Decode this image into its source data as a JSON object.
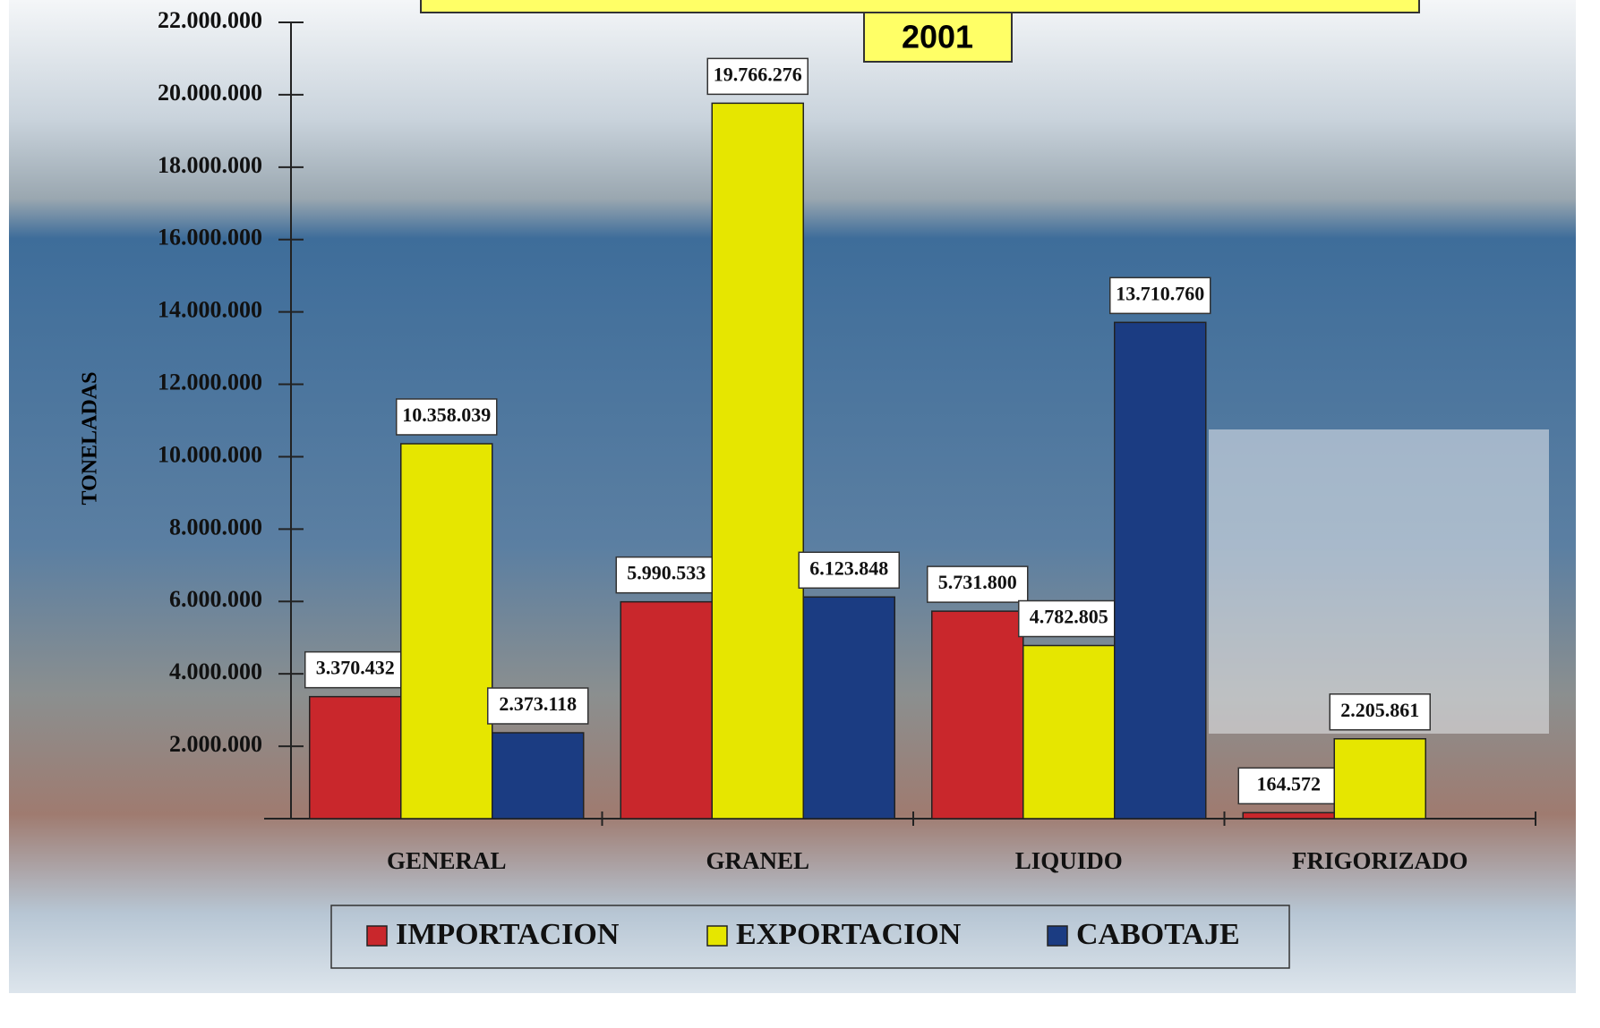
{
  "chart_data": {
    "type": "bar",
    "title": "2001",
    "y_label": "TONELADAS",
    "categories": [
      "GENERAL",
      "GRANEL",
      "LIQUIDO",
      "FRIGORIZADO"
    ],
    "series": [
      {
        "name": "IMPORTACION",
        "color": "#c9272c",
        "values": [
          3370432,
          5990533,
          5731800,
          164572
        ],
        "value_labels": [
          "3.370.432",
          "5.990.533",
          "5.731.800",
          "164.572"
        ]
      },
      {
        "name": "EXPORTACION",
        "color": "#e6e600",
        "values": [
          10358039,
          19766276,
          4782805,
          2205861
        ],
        "value_labels": [
          "10.358.039",
          "19.766.276",
          "4.782.805",
          "2.205.861"
        ]
      },
      {
        "name": "CABOTAJE",
        "color": "#1b3c82",
        "values": [
          2373118,
          6123848,
          13710760,
          null
        ],
        "value_labels": [
          "2.373.118",
          "6.123.848",
          "13.710.760",
          null
        ]
      }
    ],
    "ylim": [
      0,
      22000000
    ],
    "yticks": [
      {
        "value": 2000000,
        "label": "2.000.000"
      },
      {
        "value": 4000000,
        "label": "4.000.000"
      },
      {
        "value": 6000000,
        "label": "6.000.000"
      },
      {
        "value": 8000000,
        "label": "8.000.000"
      },
      {
        "value": 10000000,
        "label": "10.000.000"
      },
      {
        "value": 12000000,
        "label": "12.000.000"
      },
      {
        "value": 14000000,
        "label": "14.000.000"
      },
      {
        "value": 16000000,
        "label": "16.000.000"
      },
      {
        "value": 18000000,
        "label": "18.000.000"
      },
      {
        "value": 20000000,
        "label": "20.000.000"
      },
      {
        "value": 22000000,
        "label": "22.000.000"
      }
    ],
    "legend": "bottom"
  }
}
